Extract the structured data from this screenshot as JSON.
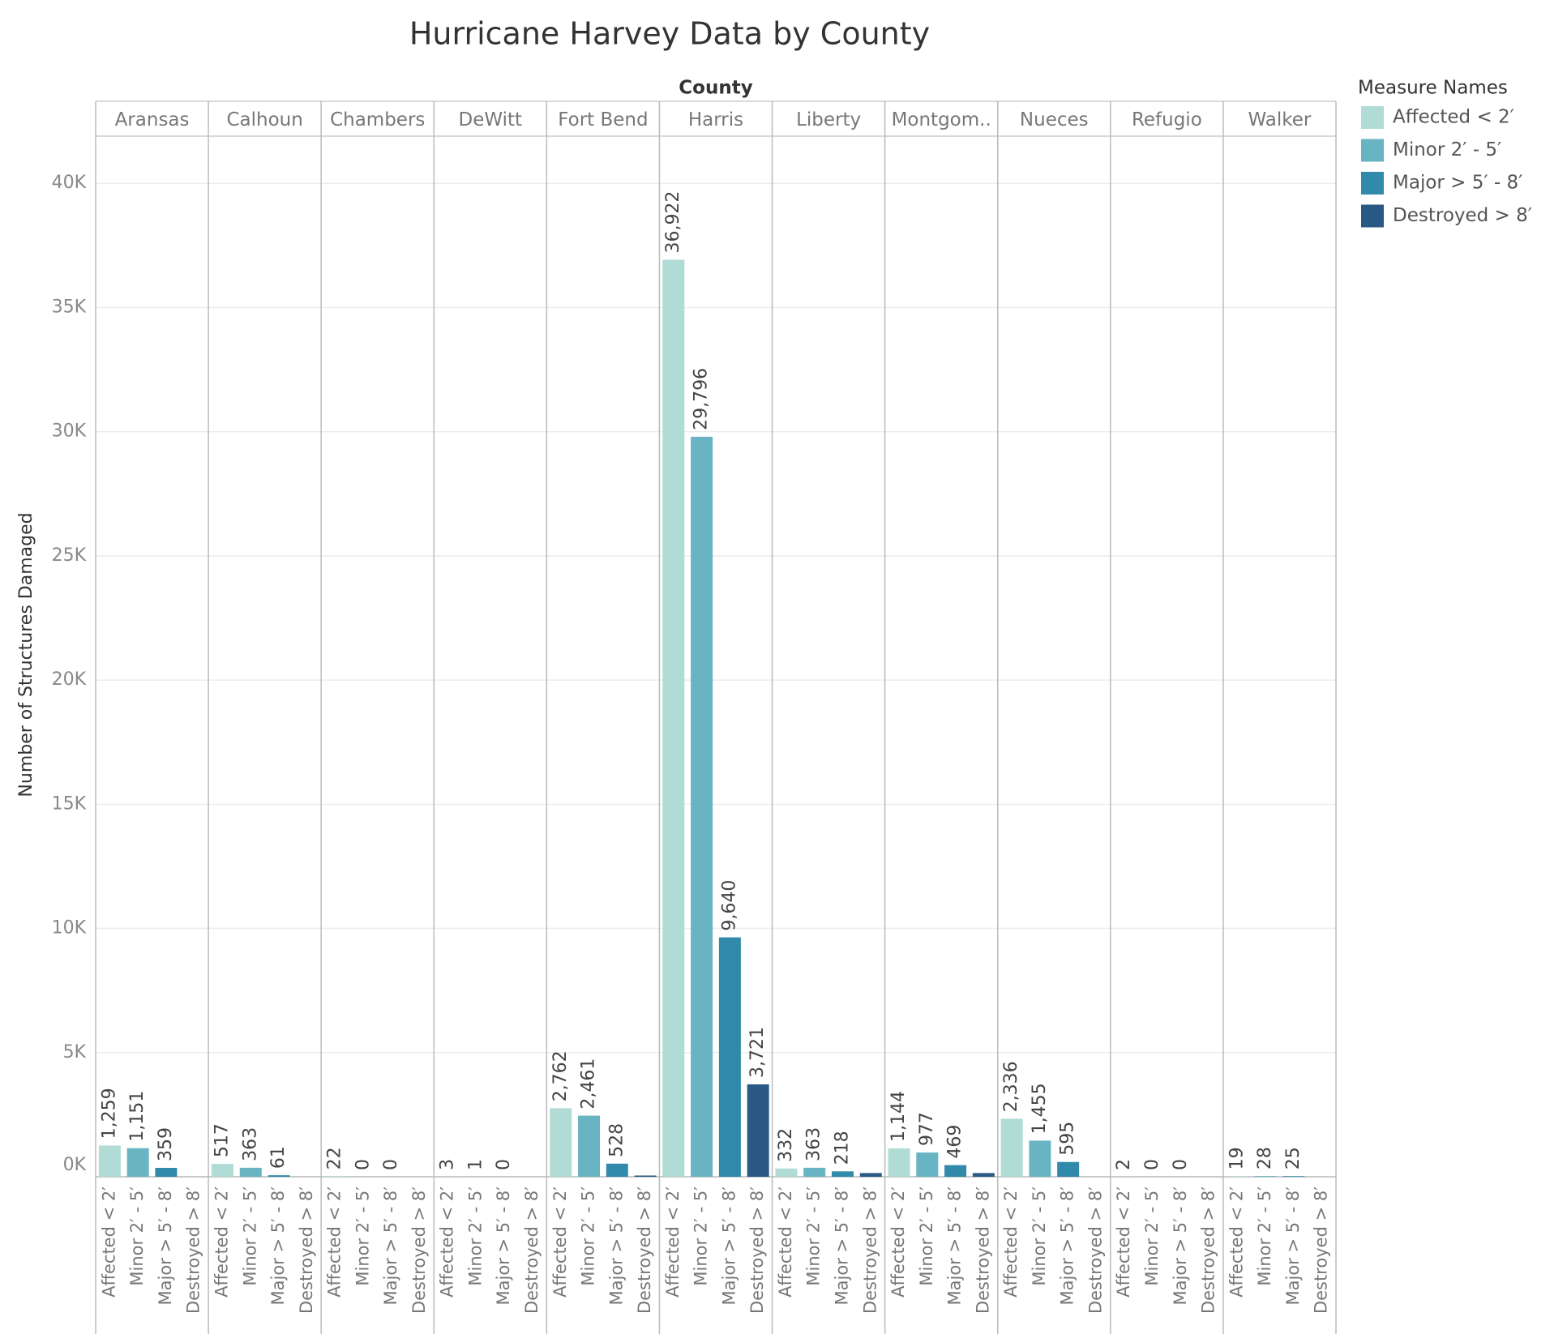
{
  "chart_data": {
    "type": "bar",
    "title": "Hurricane Harvey Data by County",
    "column_header": "County",
    "y_label": "Number of Structures Damaged",
    "legend_title": "Measure Names",
    "categories": [
      "Aransas",
      "Calhoun",
      "Chambers",
      "DeWitt",
      "Fort Bend",
      "Harris",
      "Liberty",
      "Montgom..",
      "Nueces",
      "Refugio",
      "Walker"
    ],
    "series": [
      {
        "name": "Affected < 2′",
        "color": "#b0dcd5",
        "values": [
          1259,
          517,
          22,
          3,
          2762,
          36922,
          332,
          1144,
          2336,
          2,
          19
        ],
        "value_labels": [
          "1,259",
          "517",
          "22",
          "3",
          "2,762",
          "36,922",
          "332",
          "1,144",
          "2,336",
          "2",
          "19"
        ]
      },
      {
        "name": "Minor 2′ - 5′",
        "color": "#69b4c2",
        "values": [
          1151,
          363,
          0,
          1,
          2461,
          29796,
          363,
          977,
          1455,
          0,
          28
        ],
        "value_labels": [
          "1,151",
          "363",
          "0",
          "1",
          "2,461",
          "29,796",
          "363",
          "977",
          "1,455",
          "0",
          "28"
        ]
      },
      {
        "name": "Major > 5′ - 8′",
        "color": "#328aab",
        "values": [
          359,
          61,
          0,
          0,
          528,
          9640,
          218,
          469,
          595,
          0,
          25
        ],
        "value_labels": [
          "359",
          "61",
          "0",
          "0",
          "528",
          "9,640",
          "218",
          "469",
          "595",
          "0",
          "25"
        ]
      },
      {
        "name": "Destroyed > 8′",
        "color": "#2b5986",
        "values": [
          null,
          null,
          null,
          null,
          50,
          3721,
          150,
          150,
          null,
          null,
          null
        ],
        "value_labels": [
          null,
          null,
          null,
          null,
          null,
          "3,721",
          null,
          null,
          null,
          null,
          null
        ]
      }
    ],
    "ylim": [
      0,
      41900
    ],
    "yticks": [
      {
        "value": 0,
        "label": "0K"
      },
      {
        "value": 5000,
        "label": "5K"
      },
      {
        "value": 10000,
        "label": "10K"
      },
      {
        "value": 15000,
        "label": "15K"
      },
      {
        "value": 20000,
        "label": "20K"
      },
      {
        "value": 25000,
        "label": "25K"
      },
      {
        "value": 30000,
        "label": "30K"
      },
      {
        "value": 35000,
        "label": "35K"
      },
      {
        "value": 40000,
        "label": "40K"
      }
    ],
    "grid": true
  }
}
